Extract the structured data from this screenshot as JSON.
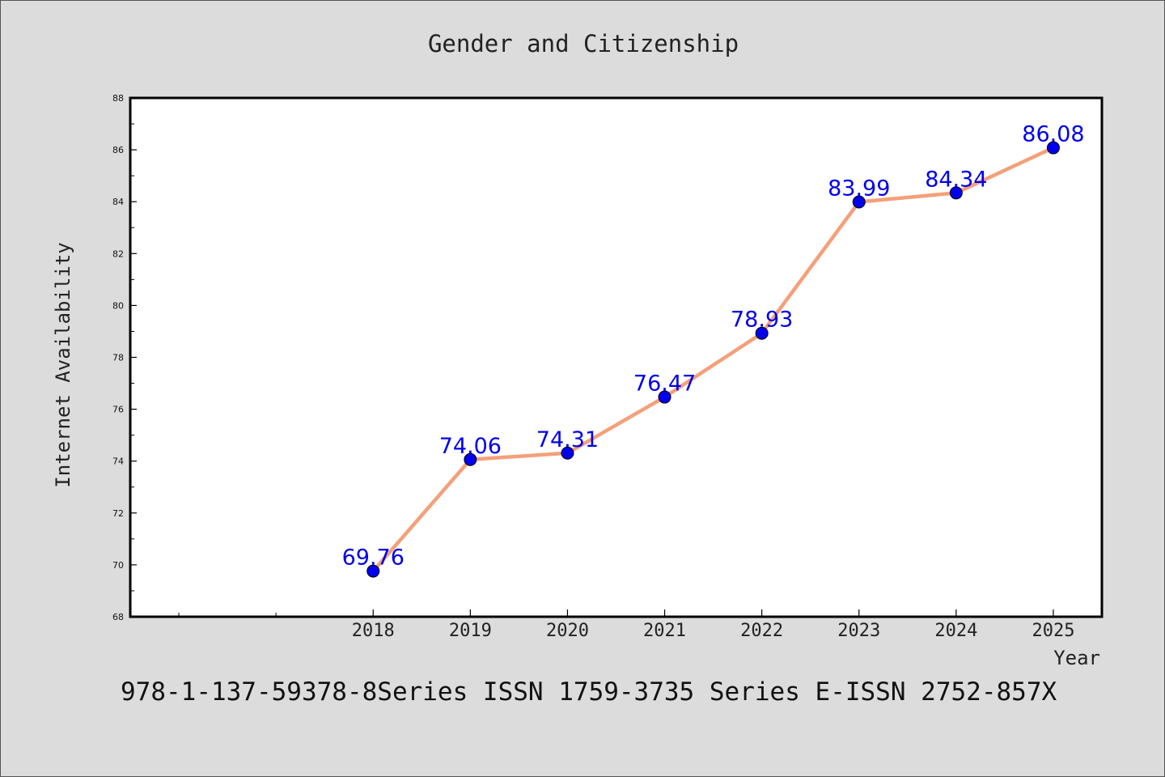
{
  "chart_data": {
    "type": "line",
    "title": "Gender and Citizenship",
    "xlabel": "Year",
    "ylabel": "Internet Availability",
    "x": [
      "2018",
      "2019",
      "2020",
      "2021",
      "2022",
      "2023",
      "2024",
      "2025"
    ],
    "series": [
      {
        "values": [
          69.76,
          74.06,
          74.31,
          76.47,
          78.93,
          83.99,
          84.34,
          86.08
        ],
        "data_labels": [
          "69.76",
          "74.06",
          "74.31",
          "76.47",
          "78.93",
          "83.99",
          "84.34",
          "86.08"
        ],
        "line_color": "#f4a07a",
        "marker_color": "#0000ee",
        "label_color": "#0000ee"
      }
    ],
    "ylim": [
      68,
      88
    ],
    "yticks": [
      "68",
      "70",
      "72",
      "74",
      "76",
      "78",
      "80",
      "82",
      "84",
      "86",
      "88"
    ],
    "xlim_slots": 10,
    "grid": false,
    "legend": "none"
  },
  "footer_text": "978-1-137-59378-8Series ISSN 1759-3735 Series E-ISSN 2752-857X",
  "colors": {
    "background": "#dcdcdc",
    "plot_background": "#ffffff",
    "axis": "#000000",
    "text": "#222222"
  }
}
